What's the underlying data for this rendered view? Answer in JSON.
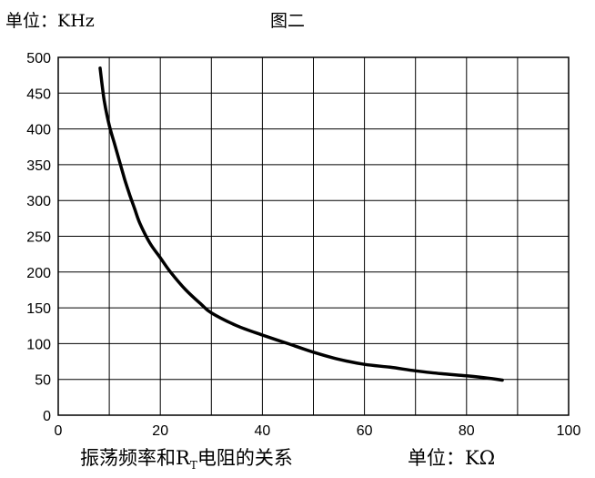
{
  "chart_data": {
    "type": "line",
    "title": "图二",
    "y_unit_label": "单位：KHz",
    "caption": {
      "prefix": "振荡频率和R",
      "subscript": "T",
      "suffix": "电阻的关系",
      "unit": "单位：KΩ"
    },
    "xlim": [
      0,
      100
    ],
    "ylim": [
      0,
      500
    ],
    "xticks": [
      0,
      20,
      40,
      60,
      80,
      100
    ],
    "yticks": [
      0,
      50,
      100,
      150,
      200,
      250,
      300,
      350,
      400,
      450,
      500
    ],
    "x_grid_step": 10,
    "y_grid_step": 50,
    "grid": true,
    "series": [
      {
        "x": [
          8.2,
          9,
          10,
          11,
          12,
          13,
          14,
          15,
          16,
          18,
          20,
          22,
          25,
          28,
          30,
          35,
          40,
          45,
          50,
          55,
          60,
          65,
          70,
          75,
          80,
          85,
          87
        ],
        "y": [
          485,
          440,
          405,
          380,
          355,
          330,
          308,
          288,
          268,
          240,
          220,
          200,
          175,
          155,
          143,
          125,
          112,
          100,
          88,
          78,
          71,
          67,
          62,
          58,
          55,
          51,
          49
        ]
      }
    ]
  }
}
